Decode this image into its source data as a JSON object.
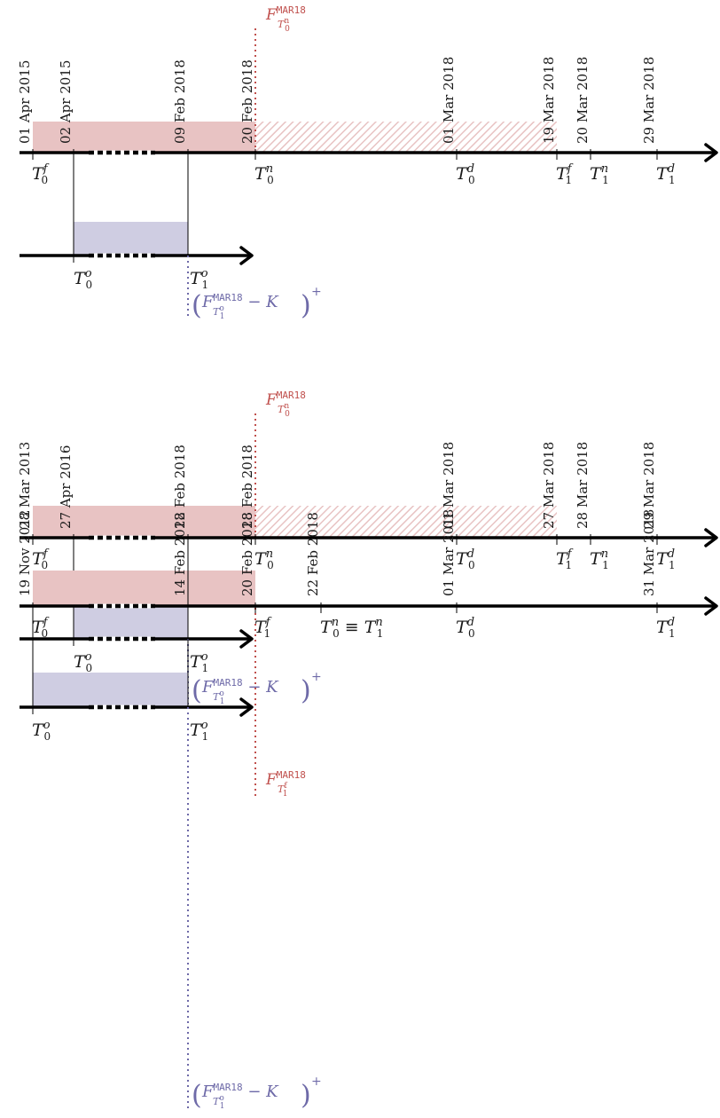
{
  "colors": {
    "red": "#c0504d",
    "red_fill": "#e8c3c3",
    "blue": "#6e6aa8",
    "blue_fill": "#cfcde2",
    "axis": "#000000"
  },
  "diagrams": [
    {
      "dates": [
        "01 Apr 2015",
        "02 Apr 2015",
        "09 Feb 2018",
        "20 Feb 2018",
        "01 Mar 2018",
        "19 Mar 2018",
        "20 Mar 2018",
        "29 Mar 2018"
      ],
      "futures": {
        "letter": "F",
        "contract": "MAR18",
        "time": "T",
        "sup": "n",
        "sub": "0"
      },
      "t_labels": [
        {
          "base": "T",
          "sup": "f",
          "sub": "0"
        },
        {
          "base": "T",
          "sup": "n",
          "sub": "0"
        },
        {
          "base": "T",
          "sup": "d",
          "sub": "0"
        },
        {
          "base": "T",
          "sup": "f",
          "sub": "1"
        },
        {
          "base": "T",
          "sup": "n",
          "sub": "1"
        },
        {
          "base": "T",
          "sup": "d",
          "sub": "1"
        }
      ],
      "option_labels": [
        {
          "base": "T",
          "sup": "o",
          "sub": "0"
        },
        {
          "base": "T",
          "sup": "o",
          "sub": "1"
        }
      ],
      "payoff": {
        "letter": "F",
        "contract": "MAR18",
        "time": "T",
        "tsup": "o",
        "tsub": "1",
        "minus": " − K",
        "plus": "+"
      }
    },
    {
      "dates": [
        "28 Mar 2013",
        "27 Apr 2016",
        "22 Feb 2018",
        "28 Feb 2018",
        "01 Mar 2018",
        "27 Mar 2018",
        "28 Mar 2018",
        "29 Mar 2018"
      ],
      "futures": {
        "letter": "F",
        "contract": "MAR18",
        "time": "T",
        "sup": "n",
        "sub": "0"
      },
      "t_labels": [
        {
          "base": "T",
          "sup": "f",
          "sub": "0"
        },
        {
          "base": "T",
          "sup": "n",
          "sub": "0"
        },
        {
          "base": "T",
          "sup": "d",
          "sub": "0"
        },
        {
          "base": "T",
          "sup": "f",
          "sub": "1"
        },
        {
          "base": "T",
          "sup": "n",
          "sub": "1"
        },
        {
          "base": "T",
          "sup": "d",
          "sub": "1"
        }
      ],
      "option_labels": [
        {
          "base": "T",
          "sup": "o",
          "sub": "0"
        },
        {
          "base": "T",
          "sup": "o",
          "sub": "1"
        }
      ],
      "payoff": {
        "letter": "F",
        "contract": "MAR18",
        "time": "T",
        "tsup": "o",
        "tsub": "1",
        "minus": " − K",
        "plus": "+"
      }
    },
    {
      "dates": [
        "19 Nov 2012",
        "14 Feb 2018",
        "20 Feb 2018",
        "22 Feb 2018",
        "01 Mar 2018",
        "31 Mar 2018"
      ],
      "futures": {
        "letter": "F",
        "contract": "MAR18",
        "time": "T",
        "sup": "f",
        "sub": "1"
      },
      "t_labels": [
        {
          "base": "T",
          "sup": "f",
          "sub": "0"
        },
        {
          "base": "T",
          "sup": "f",
          "sub": "1"
        },
        {
          "base": "T",
          "sup": "n",
          "sub": "0",
          "eq": " ≡ T",
          "eqsup": "n",
          "eqsub": "1"
        },
        {
          "base": "T",
          "sup": "d",
          "sub": "0"
        },
        {
          "base": "T",
          "sup": "d",
          "sub": "1"
        }
      ],
      "option_labels": [
        {
          "base": "T",
          "sup": "o",
          "sub": "0"
        },
        {
          "base": "T",
          "sup": "o",
          "sub": "1"
        }
      ],
      "payoff": {
        "letter": "F",
        "contract": "MAR18",
        "time": "T",
        "tsup": "o",
        "tsub": "1",
        "minus": " − K",
        "plus": "+"
      }
    }
  ]
}
